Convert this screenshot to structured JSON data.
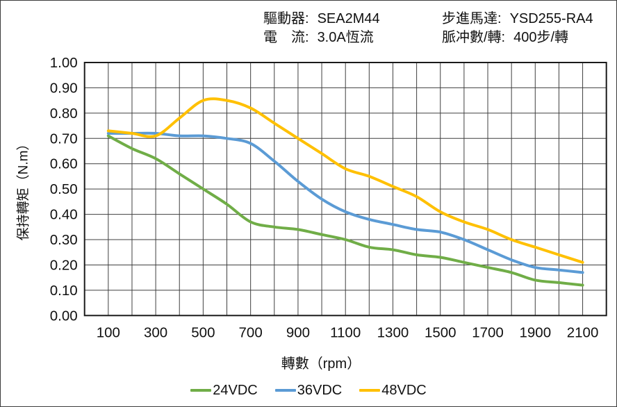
{
  "header": {
    "col1": [
      {
        "label": "驅動器:",
        "value": "SEA2M44"
      },
      {
        "label": "電　流:",
        "value": "3.0A恆流"
      }
    ],
    "col2": [
      {
        "label": "步進馬達:",
        "value": "YSD255-RA4"
      },
      {
        "label": "脈冲數/轉:",
        "value": "400步/轉"
      }
    ]
  },
  "chart_data": {
    "type": "line",
    "title": "",
    "xlabel": "轉數（rpm）",
    "ylabel": "保持轉矩（N.m）",
    "x": [
      100,
      200,
      300,
      400,
      500,
      600,
      700,
      800,
      900,
      1000,
      1100,
      1200,
      1300,
      1400,
      1500,
      1600,
      1700,
      1800,
      1900,
      2000,
      2100
    ],
    "series": [
      {
        "name": "24VDC",
        "color": "#70AD47",
        "values": [
          0.71,
          0.66,
          0.62,
          0.56,
          0.5,
          0.44,
          0.37,
          0.35,
          0.34,
          0.32,
          0.3,
          0.27,
          0.26,
          0.24,
          0.23,
          0.21,
          0.19,
          0.17,
          0.14,
          0.13,
          0.12
        ]
      },
      {
        "name": "36VDC",
        "color": "#5B9BD5",
        "values": [
          0.72,
          0.72,
          0.72,
          0.71,
          0.71,
          0.7,
          0.68,
          0.61,
          0.53,
          0.46,
          0.41,
          0.38,
          0.36,
          0.34,
          0.33,
          0.3,
          0.26,
          0.22,
          0.19,
          0.18,
          0.17
        ]
      },
      {
        "name": "48VDC",
        "color": "#FFC000",
        "values": [
          0.73,
          0.72,
          0.71,
          0.78,
          0.85,
          0.85,
          0.82,
          0.76,
          0.7,
          0.64,
          0.58,
          0.55,
          0.51,
          0.47,
          0.41,
          0.37,
          0.34,
          0.3,
          0.27,
          0.24,
          0.21
        ]
      }
    ],
    "xlim": [
      0,
      2200
    ],
    "ylim": [
      0,
      1
    ],
    "x_grid_step": 100,
    "y_grid_step": 0.1,
    "xtick_labels": [
      "100",
      "300",
      "500",
      "700",
      "900",
      "1100",
      "1300",
      "1500",
      "1700",
      "1900",
      "2100"
    ],
    "ytick_labels": [
      "0.00",
      "0.10",
      "0.20",
      "0.30",
      "0.40",
      "0.50",
      "0.60",
      "0.70",
      "0.80",
      "0.90",
      "1.00"
    ],
    "grid": true,
    "legend_position": "bottom"
  }
}
